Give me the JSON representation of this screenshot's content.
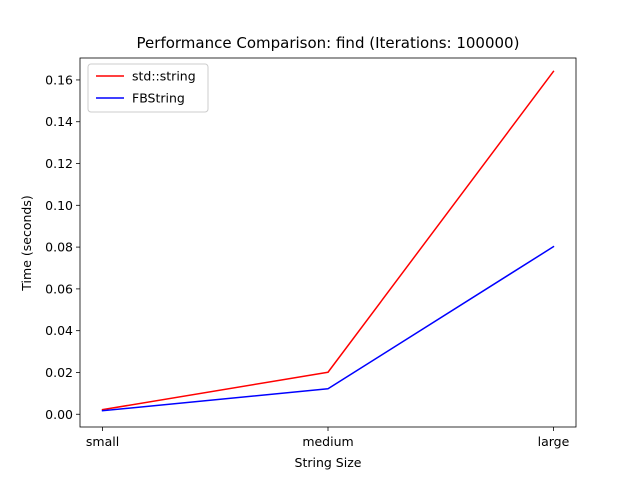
{
  "chart_data": {
    "type": "line",
    "title": "Performance Comparison: find (Iterations: 100000)",
    "xlabel": "String Size",
    "ylabel": "Time (seconds)",
    "categories": [
      "small",
      "medium",
      "large"
    ],
    "y_ticks": [
      "0.00",
      "0.02",
      "0.04",
      "0.06",
      "0.08",
      "0.10",
      "0.12",
      "0.14",
      "0.16"
    ],
    "ylim": [
      -0.0061,
      0.1705
    ],
    "grid": false,
    "legend_position": "top-left",
    "series": [
      {
        "name": "std::string",
        "color": "#ff0000",
        "values": [
          0.0022,
          0.0201,
          0.1641
        ]
      },
      {
        "name": "FBString",
        "color": "#0000ff",
        "values": [
          0.0017,
          0.0122,
          0.0802
        ]
      }
    ]
  }
}
